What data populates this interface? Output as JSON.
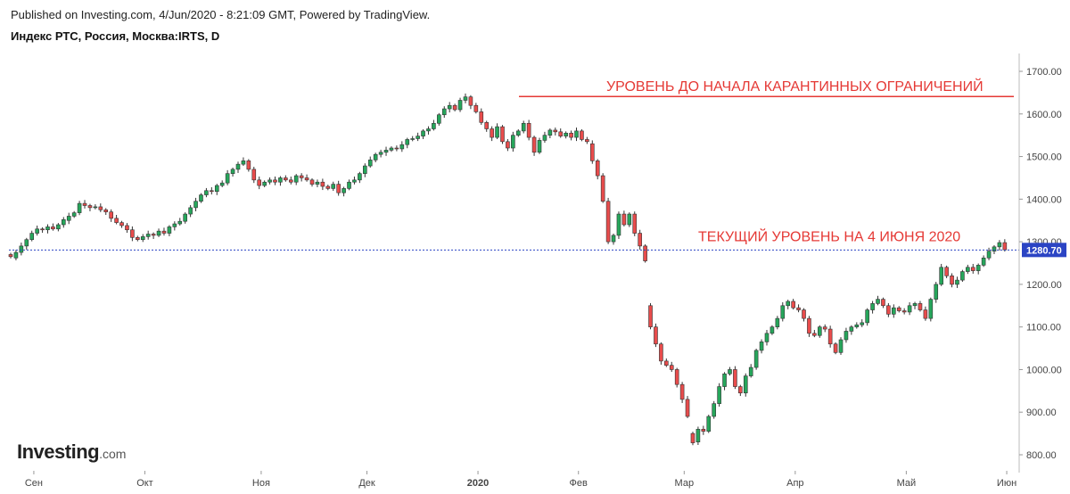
{
  "header": {
    "published": "Published on Investing.com, 4/Jun/2020 - 8:21:09 GMT, Powered by TradingView.",
    "title": "Индекс РТС, Россия, Москва:IRTS, D"
  },
  "logo": {
    "brand": "Investing",
    "domain": ".com"
  },
  "colors": {
    "up": "#26a65b",
    "down": "#e84c4c",
    "annotation": "#e53935",
    "current_line": "#2b44c4",
    "axis": "#555555"
  },
  "chart_data": {
    "type": "candlestick",
    "title": "Индекс РТС, Россия, Москва:IRTS, D",
    "ylim": [
      780,
      1740
    ],
    "y_ticks": [
      "1700.00",
      "1600.00",
      "1500.00",
      "1400.00",
      "1300.00",
      "1200.00",
      "1100.00",
      "1000.00",
      "900.00",
      "800.00"
    ],
    "x_ticks": [
      {
        "label": "Сен",
        "index": 1
      },
      {
        "label": "Окт",
        "index": 22
      },
      {
        "label": "Ноя",
        "index": 44
      },
      {
        "label": "Дек",
        "index": 64
      },
      {
        "label": "2020",
        "index": 85
      },
      {
        "label": "Фев",
        "index": 104
      },
      {
        "label": "Мар",
        "index": 124
      },
      {
        "label": "Апр",
        "index": 145
      },
      {
        "label": "Май",
        "index": 166
      },
      {
        "label": "Июн",
        "index": 185
      }
    ],
    "current_price": {
      "value": 1280.7,
      "label": "1280.70"
    },
    "annotations": [
      {
        "text": "УРОВЕНЬ ДО НАЧАЛА КАРАНТИННЫХ ОГРАНИЧЕНИЙ",
        "value": 1641
      },
      {
        "text": "ТЕКУЩИЙ УРОВЕНЬ НА 4 ИЮНЯ 2020",
        "value": 1280.7
      }
    ],
    "candles": [
      [
        1270,
        1265
      ],
      [
        1262,
        1275
      ],
      [
        1275,
        1290
      ],
      [
        1290,
        1305
      ],
      [
        1305,
        1320
      ],
      [
        1320,
        1330
      ],
      [
        1330,
        1328
      ],
      [
        1328,
        1335
      ],
      [
        1335,
        1330
      ],
      [
        1330,
        1340
      ],
      [
        1340,
        1352
      ],
      [
        1350,
        1360
      ],
      [
        1360,
        1368
      ],
      [
        1368,
        1390
      ],
      [
        1390,
        1385
      ],
      [
        1385,
        1380
      ],
      [
        1380,
        1382
      ],
      [
        1382,
        1375
      ],
      [
        1375,
        1370
      ],
      [
        1370,
        1355
      ],
      [
        1355,
        1345
      ],
      [
        1345,
        1338
      ],
      [
        1338,
        1328
      ],
      [
        1328,
        1310
      ],
      [
        1310,
        1305
      ],
      [
        1305,
        1312
      ],
      [
        1312,
        1318
      ],
      [
        1318,
        1315
      ],
      [
        1315,
        1325
      ],
      [
        1325,
        1320
      ],
      [
        1320,
        1335
      ],
      [
        1335,
        1342
      ],
      [
        1342,
        1348
      ],
      [
        1348,
        1365
      ],
      [
        1365,
        1380
      ],
      [
        1380,
        1395
      ],
      [
        1395,
        1410
      ],
      [
        1410,
        1420
      ],
      [
        1420,
        1418
      ],
      [
        1418,
        1432
      ],
      [
        1432,
        1438
      ],
      [
        1438,
        1460
      ],
      [
        1460,
        1470
      ],
      [
        1470,
        1482
      ],
      [
        1482,
        1490
      ],
      [
        1490,
        1470
      ],
      [
        1470,
        1445
      ],
      [
        1445,
        1432
      ],
      [
        1432,
        1440
      ],
      [
        1440,
        1445
      ],
      [
        1445,
        1440
      ],
      [
        1440,
        1450
      ],
      [
        1450,
        1445
      ],
      [
        1445,
        1440
      ],
      [
        1440,
        1455
      ],
      [
        1455,
        1450
      ],
      [
        1450,
        1445
      ],
      [
        1445,
        1435
      ],
      [
        1435,
        1440
      ],
      [
        1440,
        1430
      ],
      [
        1430,
        1425
      ],
      [
        1425,
        1435
      ],
      [
        1435,
        1415
      ],
      [
        1415,
        1425
      ],
      [
        1425,
        1440
      ],
      [
        1440,
        1445
      ],
      [
        1445,
        1460
      ],
      [
        1460,
        1478
      ],
      [
        1478,
        1492
      ],
      [
        1492,
        1505
      ],
      [
        1505,
        1510
      ],
      [
        1510,
        1515
      ],
      [
        1515,
        1520
      ],
      [
        1520,
        1518
      ],
      [
        1518,
        1528
      ],
      [
        1528,
        1540
      ],
      [
        1540,
        1542
      ],
      [
        1542,
        1548
      ],
      [
        1548,
        1560
      ],
      [
        1560,
        1565
      ],
      [
        1565,
        1578
      ],
      [
        1578,
        1598
      ],
      [
        1598,
        1612
      ],
      [
        1612,
        1620
      ],
      [
        1620,
        1610
      ],
      [
        1610,
        1632
      ],
      [
        1632,
        1640
      ],
      [
        1640,
        1620
      ],
      [
        1620,
        1605
      ],
      [
        1605,
        1580
      ],
      [
        1580,
        1565
      ],
      [
        1565,
        1545
      ],
      [
        1545,
        1570
      ],
      [
        1570,
        1535
      ],
      [
        1535,
        1520
      ],
      [
        1520,
        1550
      ],
      [
        1550,
        1560
      ],
      [
        1560,
        1578
      ],
      [
        1578,
        1545
      ],
      [
        1545,
        1510
      ],
      [
        1510,
        1538
      ],
      [
        1538,
        1550
      ],
      [
        1550,
        1562
      ],
      [
        1562,
        1558
      ],
      [
        1558,
        1548
      ],
      [
        1548,
        1555
      ],
      [
        1555,
        1545
      ],
      [
        1545,
        1560
      ],
      [
        1560,
        1540
      ],
      [
        1540,
        1535
      ],
      [
        1530,
        1490
      ],
      [
        1490,
        1455
      ],
      [
        1455,
        1395
      ],
      [
        1395,
        1300
      ],
      [
        1300,
        1315
      ],
      [
        1315,
        1365
      ],
      [
        1365,
        1340
      ],
      [
        1340,
        1365
      ],
      [
        1365,
        1320
      ],
      [
        1320,
        1290
      ],
      [
        1290,
        1255
      ],
      [
        1150,
        1100
      ],
      [
        1100,
        1060
      ],
      [
        1060,
        1020
      ],
      [
        1020,
        1010
      ],
      [
        1010,
        1000
      ],
      [
        1000,
        965
      ],
      [
        965,
        930
      ],
      [
        930,
        890
      ],
      [
        850,
        828
      ],
      [
        830,
        860
      ],
      [
        860,
        855
      ],
      [
        855,
        890
      ],
      [
        890,
        920
      ],
      [
        920,
        960
      ],
      [
        960,
        990
      ],
      [
        990,
        1000
      ],
      [
        1000,
        960
      ],
      [
        960,
        945
      ],
      [
        945,
        985
      ],
      [
        985,
        1005
      ],
      [
        1005,
        1045
      ],
      [
        1045,
        1065
      ],
      [
        1065,
        1085
      ],
      [
        1085,
        1100
      ],
      [
        1100,
        1120
      ],
      [
        1120,
        1150
      ],
      [
        1150,
        1160
      ],
      [
        1160,
        1145
      ],
      [
        1145,
        1140
      ],
      [
        1140,
        1120
      ],
      [
        1120,
        1085
      ],
      [
        1085,
        1080
      ],
      [
        1080,
        1100
      ],
      [
        1100,
        1095
      ],
      [
        1095,
        1060
      ],
      [
        1060,
        1040
      ],
      [
        1040,
        1070
      ],
      [
        1070,
        1090
      ],
      [
        1090,
        1100
      ],
      [
        1100,
        1105
      ],
      [
        1105,
        1110
      ],
      [
        1110,
        1140
      ],
      [
        1140,
        1155
      ],
      [
        1155,
        1165
      ],
      [
        1165,
        1150
      ],
      [
        1150,
        1130
      ],
      [
        1130,
        1145
      ],
      [
        1145,
        1138
      ],
      [
        1138,
        1135
      ],
      [
        1135,
        1150
      ],
      [
        1150,
        1155
      ],
      [
        1155,
        1140
      ],
      [
        1140,
        1120
      ],
      [
        1120,
        1165
      ],
      [
        1165,
        1200
      ],
      [
        1200,
        1240
      ],
      [
        1240,
        1220
      ],
      [
        1220,
        1200
      ],
      [
        1200,
        1210
      ],
      [
        1210,
        1230
      ],
      [
        1230,
        1240
      ],
      [
        1240,
        1232
      ],
      [
        1232,
        1245
      ],
      [
        1245,
        1262
      ],
      [
        1262,
        1278
      ],
      [
        1278,
        1288
      ],
      [
        1288,
        1298
      ],
      [
        1298,
        1281
      ]
    ]
  }
}
